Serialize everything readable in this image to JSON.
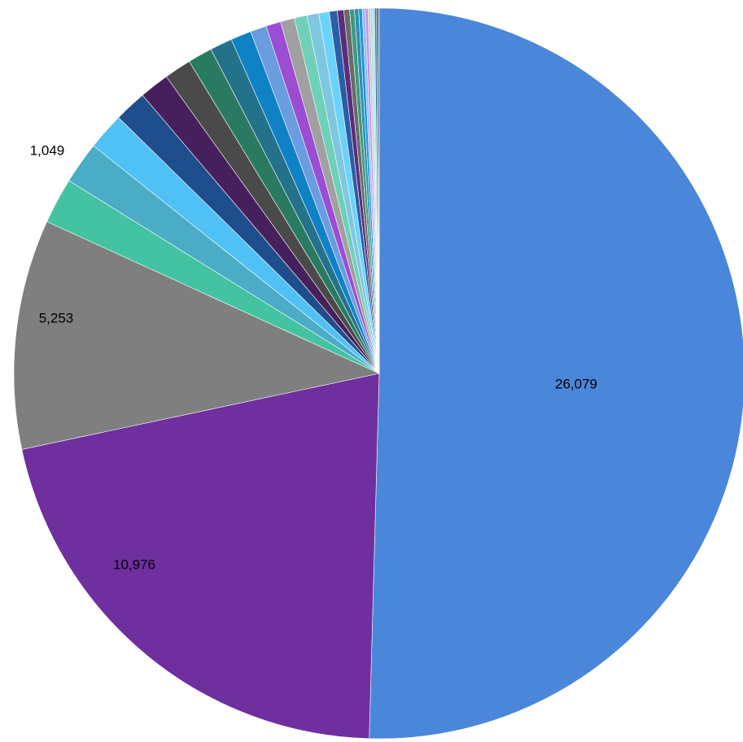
{
  "chart_data": {
    "type": "pie",
    "start_angle_deg": 0,
    "direction": "clockwise",
    "legend": "none",
    "slices": [
      {
        "value": 26079,
        "label": "26,079",
        "color": "#4a86d9"
      },
      {
        "value": 10976,
        "label": "10,976",
        "color": "#6f2f9f"
      },
      {
        "value": 5253,
        "label": "5,253",
        "color": "#7f7f7f"
      },
      {
        "value": 1049,
        "label": "1,049",
        "color": "#43c3a2"
      },
      {
        "value": 960,
        "label": "",
        "color": "#4bacc6"
      },
      {
        "value": 850,
        "label": "",
        "color": "#4fc1f5"
      },
      {
        "value": 740,
        "label": "",
        "color": "#1f4e8c"
      },
      {
        "value": 680,
        "label": "",
        "color": "#46205c"
      },
      {
        "value": 620,
        "label": "",
        "color": "#4a4a4a"
      },
      {
        "value": 560,
        "label": "",
        "color": "#2a7a62"
      },
      {
        "value": 510,
        "label": "",
        "color": "#24718a"
      },
      {
        "value": 470,
        "label": "",
        "color": "#0f82c6"
      },
      {
        "value": 370,
        "label": "",
        "color": "#6a9de0"
      },
      {
        "value": 340,
        "label": "",
        "color": "#9b4dd3"
      },
      {
        "value": 320,
        "label": "",
        "color": "#a0a0a0"
      },
      {
        "value": 290,
        "label": "",
        "color": "#6fd0b8"
      },
      {
        "value": 270,
        "label": "",
        "color": "#7fc6e0"
      },
      {
        "value": 240,
        "label": "",
        "color": "#6bd3fb"
      },
      {
        "value": 180,
        "label": "",
        "color": "#2a5ea8"
      },
      {
        "value": 150,
        "label": "",
        "color": "#5a2d7a"
      },
      {
        "value": 130,
        "label": "",
        "color": "#6a6a6a"
      },
      {
        "value": 110,
        "label": "",
        "color": "#3c9a7e"
      },
      {
        "value": 95,
        "label": "",
        "color": "#2f8fb0"
      },
      {
        "value": 80,
        "label": "",
        "color": "#1a95e0"
      },
      {
        "value": 70,
        "label": "",
        "color": "#9cb9ec"
      },
      {
        "value": 60,
        "label": "",
        "color": "#c28be8"
      },
      {
        "value": 55,
        "label": "",
        "color": "#c8c8c8"
      },
      {
        "value": 50,
        "label": "",
        "color": "#a3e3d2"
      },
      {
        "value": 45,
        "label": "",
        "color": "#a8dcef"
      },
      {
        "value": 40,
        "label": "",
        "color": "#2f6fb8"
      },
      {
        "value": 35,
        "label": "",
        "color": "#3a3a3a"
      },
      {
        "value": 30,
        "label": "",
        "color": "#256a8a"
      }
    ]
  }
}
